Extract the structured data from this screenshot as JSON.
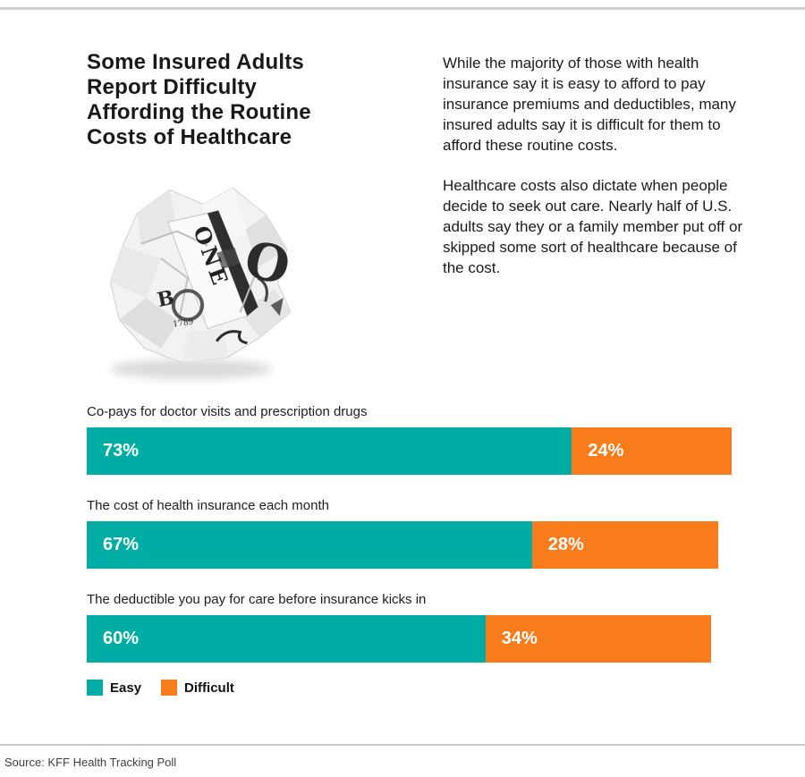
{
  "header": {
    "title": "Some Insured Adults Report Difficulty Affording the Routine Costs of Healthcare",
    "paragraphs": [
      "While the majority of those with health insurance say it is easy to afford to pay insurance premiums and deductibles, many insured adults say it is difficult for them to afford these routine costs.",
      "Healthcare costs also dictate when people decide to seek out care. Nearly half of U.S. adults say they or a family member put off or skipped some sort of healthcare because of the cost."
    ]
  },
  "dollar_image": {
    "name": "crumpled-dollar-bill-photo",
    "text_fragments": [
      "ONE",
      "O",
      "B",
      "1789"
    ]
  },
  "chart_data": {
    "type": "bar",
    "orientation": "horizontal",
    "stacked": true,
    "title": "Some Insured Adults Report Difficulty Affording the Routine Costs of Healthcare",
    "categories": [
      "Co-pays for doctor visits and prescription drugs",
      "The cost of health insurance each month",
      "The deductible you pay for care before insurance kicks in"
    ],
    "series": [
      {
        "name": "Easy",
        "color": "#00ADA4",
        "values": [
          73,
          67,
          60
        ]
      },
      {
        "name": "Difficult",
        "color": "#F87C1B",
        "values": [
          24,
          28,
          34
        ]
      }
    ],
    "value_suffix": "%",
    "xlim": [
      0,
      100
    ],
    "grid": false,
    "legend_position": "bottom-left"
  },
  "legend": {
    "items": [
      {
        "label": "Easy",
        "color": "#00ADA4"
      },
      {
        "label": "Difficult",
        "color": "#F87C1B"
      }
    ]
  },
  "footer": {
    "source": "Source: KFF Health Tracking Poll"
  }
}
